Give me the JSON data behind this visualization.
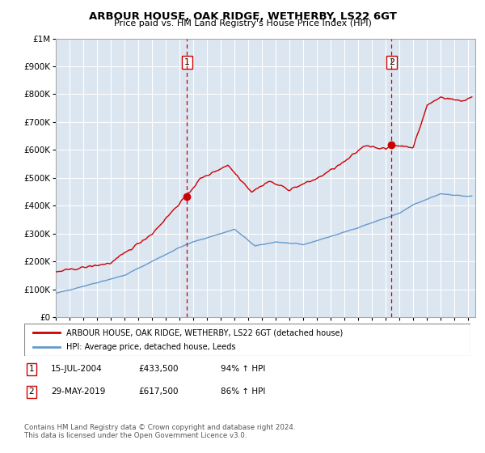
{
  "title": "ARBOUR HOUSE, OAK RIDGE, WETHERBY, LS22 6GT",
  "subtitle": "Price paid vs. HM Land Registry's House Price Index (HPI)",
  "ylim": [
    0,
    1000000
  ],
  "xlim_start": 1995.0,
  "xlim_end": 2025.5,
  "plot_bg_color": "#dce6f1",
  "grid_color": "#ffffff",
  "sale1_date": 2004.54,
  "sale1_price": 433500,
  "sale1_label": "1",
  "sale2_date": 2019.41,
  "sale2_price": 617500,
  "sale2_label": "2",
  "red_line_color": "#cc0000",
  "blue_line_color": "#6699cc",
  "marker_box_color": "#cc0000",
  "legend_label_red": "ARBOUR HOUSE, OAK RIDGE, WETHERBY, LS22 6GT (detached house)",
  "legend_label_blue": "HPI: Average price, detached house, Leeds",
  "ann1_num": "1",
  "ann1_date": "15-JUL-2004",
  "ann1_price": "£433,500",
  "ann1_pct": "94% ↑ HPI",
  "ann2_num": "2",
  "ann2_date": "29-MAY-2019",
  "ann2_price": "£617,500",
  "ann2_pct": "86% ↑ HPI",
  "footer": "Contains HM Land Registry data © Crown copyright and database right 2024.\nThis data is licensed under the Open Government Licence v3.0.",
  "ytick_labels": [
    "£0",
    "£100K",
    "£200K",
    "£300K",
    "£400K",
    "£500K",
    "£600K",
    "£700K",
    "£800K",
    "£900K",
    "£1M"
  ],
  "ytick_values": [
    0,
    100000,
    200000,
    300000,
    400000,
    500000,
    600000,
    700000,
    800000,
    900000,
    1000000
  ],
  "hpi_years": [
    1995.0,
    1995.083,
    1995.167,
    1995.25,
    1995.333,
    1995.417,
    1995.5,
    1995.583,
    1995.667,
    1995.75,
    1995.833,
    1995.917,
    1996.0,
    1996.083,
    1996.167,
    1996.25,
    1996.333,
    1996.417,
    1996.5,
    1996.583,
    1996.667,
    1996.75,
    1996.833,
    1996.917,
    1997.0,
    1997.083,
    1997.167,
    1997.25,
    1997.333,
    1997.417,
    1997.5,
    1997.583,
    1997.667,
    1997.75,
    1997.833,
    1997.917,
    1998.0,
    1998.083,
    1998.167,
    1998.25,
    1998.333,
    1998.417,
    1998.5,
    1998.583,
    1998.667,
    1998.75,
    1998.833,
    1998.917,
    1999.0,
    1999.083,
    1999.167,
    1999.25,
    1999.333,
    1999.417,
    1999.5,
    1999.583,
    1999.667,
    1999.75,
    1999.833,
    1999.917,
    2000.0,
    2000.083,
    2000.167,
    2000.25,
    2000.333,
    2000.417,
    2000.5,
    2000.583,
    2000.667,
    2000.75,
    2000.833,
    2000.917,
    2001.0,
    2001.083,
    2001.167,
    2001.25,
    2001.333,
    2001.417,
    2001.5,
    2001.583,
    2001.667,
    2001.75,
    2001.833,
    2001.917,
    2002.0,
    2002.083,
    2002.167,
    2002.25,
    2002.333,
    2002.417,
    2002.5,
    2002.583,
    2002.667,
    2002.75,
    2002.833,
    2002.917,
    2003.0,
    2003.083,
    2003.167,
    2003.25,
    2003.333,
    2003.417,
    2003.5,
    2003.583,
    2003.667,
    2003.75,
    2003.833,
    2003.917,
    2004.0,
    2004.083,
    2004.167,
    2004.25,
    2004.333,
    2004.417,
    2004.5,
    2004.583,
    2004.667,
    2004.75,
    2004.833,
    2004.917,
    2005.0,
    2005.083,
    2005.167,
    2005.25,
    2005.333,
    2005.417,
    2005.5,
    2005.583,
    2005.667,
    2005.75,
    2005.833,
    2005.917,
    2006.0,
    2006.083,
    2006.167,
    2006.25,
    2006.333,
    2006.417,
    2006.5,
    2006.583,
    2006.667,
    2006.75,
    2006.833,
    2006.917,
    2007.0,
    2007.083,
    2007.167,
    2007.25,
    2007.333,
    2007.417,
    2007.5,
    2007.583,
    2007.667,
    2007.75,
    2007.833,
    2007.917,
    2008.0,
    2008.083,
    2008.167,
    2008.25,
    2008.333,
    2008.417,
    2008.5,
    2008.583,
    2008.667,
    2008.75,
    2008.833,
    2008.917,
    2009.0,
    2009.083,
    2009.167,
    2009.25,
    2009.333,
    2009.417,
    2009.5,
    2009.583,
    2009.667,
    2009.75,
    2009.833,
    2009.917,
    2010.0,
    2010.083,
    2010.167,
    2010.25,
    2010.333,
    2010.417,
    2010.5,
    2010.583,
    2010.667,
    2010.75,
    2010.833,
    2010.917,
    2011.0,
    2011.083,
    2011.167,
    2011.25,
    2011.333,
    2011.417,
    2011.5,
    2011.583,
    2011.667,
    2011.75,
    2011.833,
    2011.917,
    2012.0,
    2012.083,
    2012.167,
    2012.25,
    2012.333,
    2012.417,
    2012.5,
    2012.583,
    2012.667,
    2012.75,
    2012.833,
    2012.917,
    2013.0,
    2013.083,
    2013.167,
    2013.25,
    2013.333,
    2013.417,
    2013.5,
    2013.583,
    2013.667,
    2013.75,
    2013.833,
    2013.917,
    2014.0,
    2014.083,
    2014.167,
    2014.25,
    2014.333,
    2014.417,
    2014.5,
    2014.583,
    2014.667,
    2014.75,
    2014.833,
    2014.917,
    2015.0,
    2015.083,
    2015.167,
    2015.25,
    2015.333,
    2015.417,
    2015.5,
    2015.583,
    2015.667,
    2015.75,
    2015.833,
    2015.917,
    2016.0,
    2016.083,
    2016.167,
    2016.25,
    2016.333,
    2016.417,
    2016.5,
    2016.583,
    2016.667,
    2016.75,
    2016.833,
    2016.917,
    2017.0,
    2017.083,
    2017.167,
    2017.25,
    2017.333,
    2017.417,
    2017.5,
    2017.583,
    2017.667,
    2017.75,
    2017.833,
    2017.917,
    2018.0,
    2018.083,
    2018.167,
    2018.25,
    2018.333,
    2018.417,
    2018.5,
    2018.583,
    2018.667,
    2018.75,
    2018.833,
    2018.917,
    2019.0,
    2019.083,
    2019.167,
    2019.25,
    2019.333,
    2019.417,
    2019.5,
    2019.583,
    2019.667,
    2019.75,
    2019.833,
    2019.917,
    2020.0,
    2020.083,
    2020.167,
    2020.25,
    2020.333,
    2020.417,
    2020.5,
    2020.583,
    2020.667,
    2020.75,
    2020.833,
    2020.917,
    2021.0,
    2021.083,
    2021.167,
    2021.25,
    2021.333,
    2021.417,
    2021.5,
    2021.583,
    2021.667,
    2021.75,
    2021.833,
    2021.917,
    2022.0,
    2022.083,
    2022.167,
    2022.25,
    2022.333,
    2022.417,
    2022.5,
    2022.583,
    2022.667,
    2022.75,
    2022.833,
    2022.917,
    2023.0,
    2023.083,
    2023.167,
    2023.25,
    2023.333,
    2023.417,
    2023.5,
    2023.583,
    2023.667,
    2023.75,
    2023.833,
    2023.917,
    2024.0,
    2024.083,
    2024.167,
    2024.25,
    2024.333,
    2024.417,
    2024.5,
    2024.583,
    2024.667,
    2024.75,
    2024.833,
    2024.917,
    2025.0,
    2025.083,
    2025.167,
    2025.25
  ]
}
